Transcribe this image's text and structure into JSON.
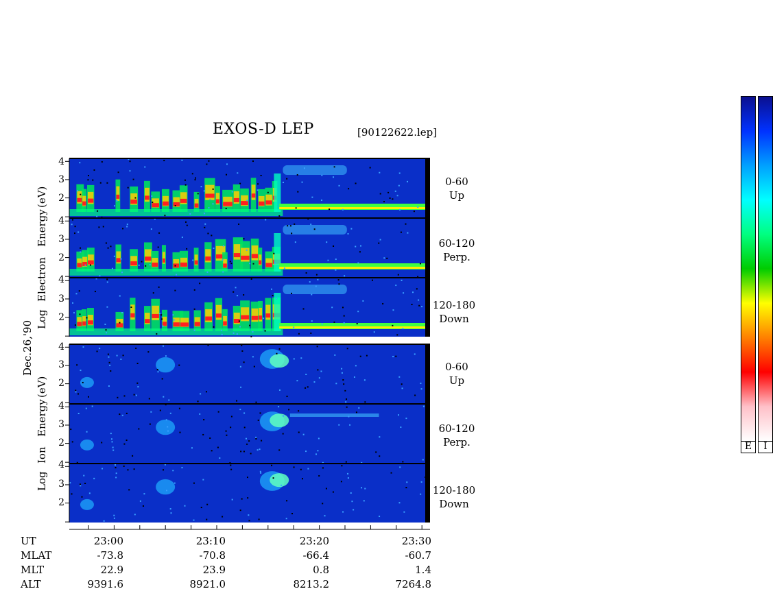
{
  "header": {
    "title": "EXOS-D LEP",
    "file": "[90122622.lep]"
  },
  "date_label": "Dec.26,'90",
  "electron_axis": {
    "words": [
      "Log",
      "Electron",
      "Energy",
      "(eV)"
    ]
  },
  "ion_axis": {
    "words": [
      "Log",
      "Ion",
      "Energy",
      "(eV)"
    ]
  },
  "panels": [
    {
      "pitch": "0-60",
      "dir": "Up"
    },
    {
      "pitch": "60-120",
      "dir": "Perp."
    },
    {
      "pitch": "120-180",
      "dir": "Down"
    },
    {
      "pitch": "0-60",
      "dir": "Up"
    },
    {
      "pitch": "60-120",
      "dir": "Perp."
    },
    {
      "pitch": "120-180",
      "dir": "Down"
    }
  ],
  "y_ticks": [
    "4",
    "3",
    "2"
  ],
  "time_axis": {
    "row_labels": [
      "UT",
      "MLAT",
      "MLT",
      "ALT"
    ],
    "columns": [
      {
        "UT": "23:00",
        "MLAT": "-73.8",
        "MLT": "22.9",
        "ALT": "9391.6"
      },
      {
        "UT": "23:10",
        "MLAT": "-70.8",
        "MLT": "23.9",
        "ALT": "8921.0"
      },
      {
        "UT": "23:20",
        "MLAT": "-66.4",
        "MLT": "0.8",
        "ALT": "8213.2"
      },
      {
        "UT": "23:30",
        "MLAT": "-60.7",
        "MLT": "1.4",
        "ALT": "7264.8"
      }
    ]
  },
  "colorbar": {
    "labels": [
      "E",
      "I"
    ]
  },
  "colors": {
    "background": "#0a2fc8",
    "colorscale": [
      "#0b0f8f",
      "#0032ff",
      "#00a0ff",
      "#00ffff",
      "#00ff80",
      "#00cc00",
      "#ffff00",
      "#ff8000",
      "#ff0000",
      "#ffc0c8",
      "#ffffff"
    ]
  },
  "chart_data": {
    "type": "heatmap",
    "title": "EXOS-D LEP",
    "x_ticks": [
      "23:00",
      "23:10",
      "23:20",
      "23:30"
    ],
    "y_ticks": [
      4,
      3,
      2
    ],
    "ylim": [
      1,
      4.2
    ],
    "panels": [
      {
        "species": "Electron",
        "pitch": "0-60",
        "dir": "Up"
      },
      {
        "species": "Electron",
        "pitch": "60-120",
        "dir": "Perp."
      },
      {
        "species": "Electron",
        "pitch": "120-180",
        "dir": "Down"
      },
      {
        "species": "Ion",
        "pitch": "0-60",
        "dir": "Up"
      },
      {
        "species": "Ion",
        "pitch": "60-120",
        "dir": "Perp."
      },
      {
        "species": "Ion",
        "pitch": "120-180",
        "dir": "Down"
      }
    ]
  }
}
